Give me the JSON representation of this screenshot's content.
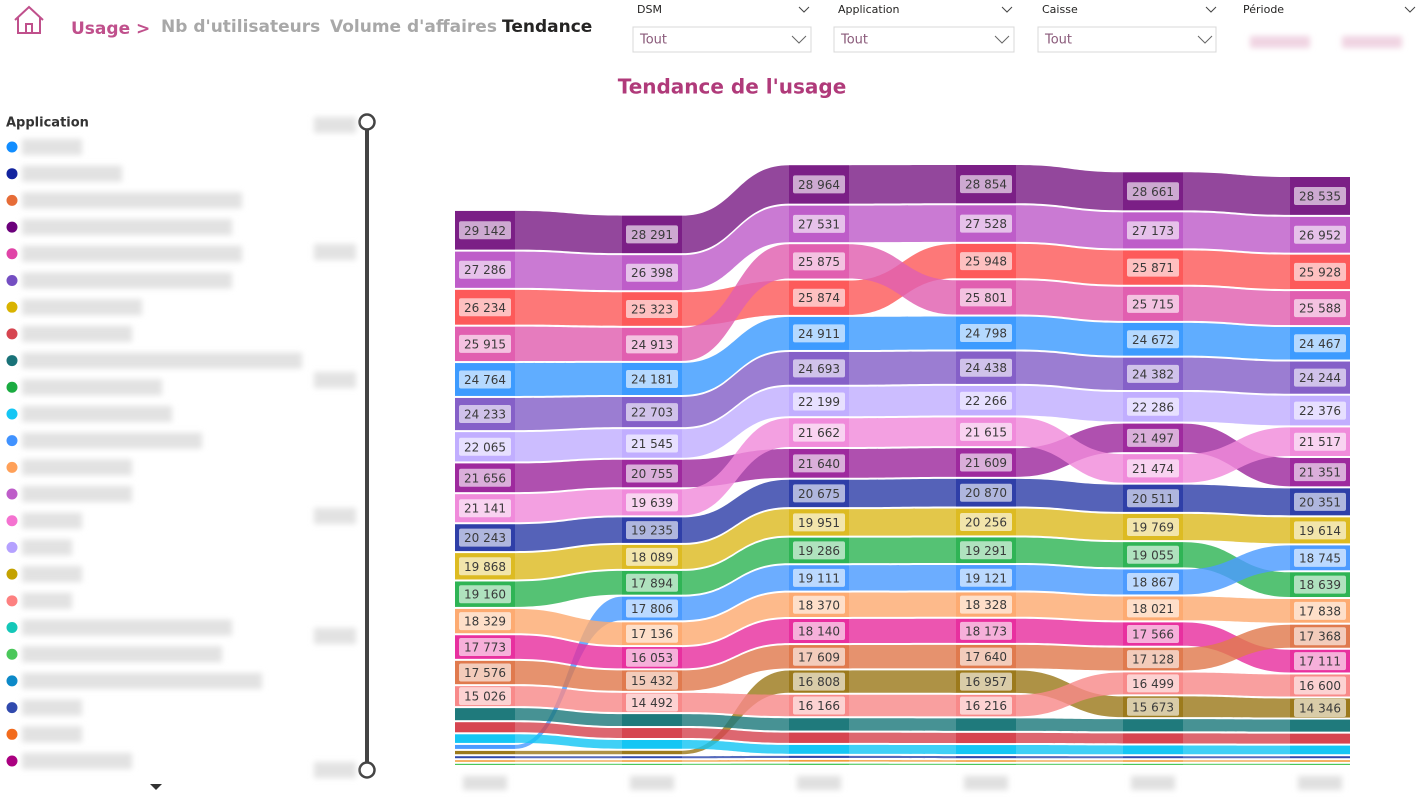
{
  "nav": [
    "Usage >",
    "Nb d'utilisateurs",
    "Volume d'affaires",
    "Tendance"
  ],
  "filters": [
    {
      "label": "DSM",
      "value": "Tout"
    },
    {
      "label": "Application",
      "value": "Tout"
    },
    {
      "label": "Caisse",
      "value": "Tout"
    },
    {
      "label": "Période"
    }
  ],
  "legend": {
    "title": "Application",
    "colors": [
      "#118DFF",
      "#12239E",
      "#E66C37",
      "#6B007B",
      "#E044A7",
      "#744EC2",
      "#D9B300",
      "#D64550",
      "#197278",
      "#1AAB40",
      "#15C6F4",
      "#4092FF",
      "#FFA058",
      "#BE5DC9",
      "#F472D0",
      "#B5A1FF",
      "#C4A200",
      "#FD8080",
      "#14C7B8",
      "#4AC75A",
      "#0C89C8",
      "#3049AD",
      "#F26B1D",
      "#AA0080"
    ]
  },
  "chart_data": {
    "type": "ribbon",
    "title": "Tendance de l'usage",
    "categories": [
      null,
      null,
      null,
      null,
      null,
      null
    ],
    "series": [
      {
        "color": "#7B1F86",
        "values": [
          29142,
          28291,
          28964,
          28854,
          28661,
          28535
        ],
        "value_labels": [
          "29 142",
          "28 291",
          "28 964",
          "28 854",
          "28 661",
          "28 535"
        ]
      },
      {
        "color": "#BE5DC9",
        "values": [
          27286,
          26398,
          27531,
          27528,
          27173,
          26952
        ],
        "value_labels": [
          "27 286",
          "26 398",
          "27 531",
          "27 528",
          "27 173",
          "26 952"
        ]
      },
      {
        "color": "#FD5A5A",
        "values": [
          26234,
          25323,
          25874,
          25948,
          25871,
          25928
        ],
        "value_labels": [
          "26 234",
          "25 323",
          "25 874",
          "25 948",
          "25 871",
          "25 928"
        ]
      },
      {
        "color": "#E15FB0",
        "values": [
          25915,
          24913,
          25875,
          25801,
          25715,
          25588
        ],
        "value_labels": [
          "25 915",
          "24 913",
          "25 875",
          "25 801",
          "25 715",
          "25 588"
        ]
      },
      {
        "color": "#3D9BFF",
        "values": [
          24764,
          24181,
          24911,
          24798,
          24672,
          24467
        ],
        "value_labels": [
          "24 764",
          "24 181",
          "24 911",
          "24 798",
          "24 672",
          "24 467"
        ]
      },
      {
        "color": "#8560C8",
        "values": [
          24233,
          22703,
          24693,
          24438,
          24382,
          24244
        ],
        "value_labels": [
          "24 233",
          "22 703",
          "24 693",
          "24 438",
          "24 382",
          "24 244"
        ]
      },
      {
        "color": "#C1AEFF",
        "values": [
          22065,
          21545,
          22199,
          22266,
          22286,
          22376
        ],
        "value_labels": [
          "22 065",
          "21 545",
          "22 199",
          "22 266",
          "22 286",
          "22 376"
        ]
      },
      {
        "color": "#9E2A9E",
        "values": [
          21656,
          20755,
          21640,
          21609,
          21497,
          21351
        ],
        "value_labels": [
          "21 656",
          "20 755",
          "21 640",
          "21 609",
          "21 497",
          "21 351"
        ]
      },
      {
        "color": "#F08BDB",
        "values": [
          21141,
          19639,
          21662,
          21615,
          21474,
          21517
        ],
        "value_labels": [
          "21 141",
          "19 639",
          "21 662",
          "21 615",
          "21 474",
          "21 517"
        ]
      },
      {
        "color": "#2F3FA8",
        "values": [
          20243,
          19235,
          20675,
          20870,
          20511,
          20351
        ],
        "value_labels": [
          "20 243",
          "19 235",
          "20 675",
          "20 870",
          "20 511",
          "20 351"
        ]
      },
      {
        "color": "#DDBB22",
        "values": [
          19868,
          18089,
          19951,
          20256,
          19769,
          19614
        ],
        "value_labels": [
          "19 868",
          "18 089",
          "19 951",
          "20 256",
          "19 769",
          "19 614"
        ]
      },
      {
        "color": "#2FB455",
        "values": [
          19160,
          17894,
          19286,
          19291,
          19055,
          18639
        ],
        "value_labels": [
          "19 160",
          "17 894",
          "19 286",
          "19 291",
          "19 055",
          "18 639"
        ]
      },
      {
        "color": "#4C9BFF",
        "values": [
          3000,
          17806,
          19111,
          19121,
          18867,
          18745
        ],
        "value_labels": [
          null,
          "17 806",
          "19 111",
          "19 121",
          "18 867",
          "18 745"
        ]
      },
      {
        "color": "#FDAB72",
        "values": [
          18329,
          17136,
          18370,
          18328,
          18021,
          17838
        ],
        "value_labels": [
          "18 329",
          "17 136",
          "18 370",
          "18 328",
          "18 021",
          "17 838"
        ]
      },
      {
        "color": "#E8309F",
        "values": [
          17773,
          16053,
          18140,
          18173,
          17566,
          17111
        ],
        "value_labels": [
          "17 773",
          "16 053",
          "18 140",
          "18 173",
          "17 566",
          "17 111"
        ]
      },
      {
        "color": "#E07A4E",
        "values": [
          17576,
          15432,
          17609,
          17640,
          17128,
          17368
        ],
        "value_labels": [
          "17 576",
          "15 432",
          "17 609",
          "17 640",
          "17 128",
          "17 368"
        ]
      },
      {
        "color": "#9C7A1C",
        "values": [
          2500,
          2600,
          16808,
          16957,
          15673,
          14346
        ],
        "value_labels": [
          null,
          null,
          "16 808",
          "16 957",
          "15 673",
          "14 346"
        ]
      },
      {
        "color": "#F88A8A",
        "values": [
          15026,
          14492,
          16166,
          16216,
          16499,
          16600
        ],
        "value_labels": [
          "15 026",
          "14 492",
          "16 166",
          "16 216",
          "16 499",
          "16 600"
        ]
      },
      {
        "color": "#1F7A7C",
        "values": [
          9100,
          9000,
          9300,
          9400,
          9200,
          9100
        ]
      },
      {
        "color": "#D64550",
        "values": [
          7600,
          7500,
          7800,
          7700,
          7600,
          7500
        ]
      },
      {
        "color": "#15C6F4",
        "values": [
          6500,
          6600,
          6700,
          6800,
          6600,
          6500
        ]
      },
      {
        "color": "#3049AD",
        "values": [
          1500,
          1500,
          1600,
          1600,
          1500,
          1500
        ]
      },
      {
        "color": "#F2A03D",
        "values": [
          1200,
          1200,
          1300,
          1200,
          1200,
          1200
        ]
      },
      {
        "color": "#4AC75A",
        "values": [
          900,
          900,
          1000,
          900,
          900,
          900
        ]
      }
    ]
  }
}
